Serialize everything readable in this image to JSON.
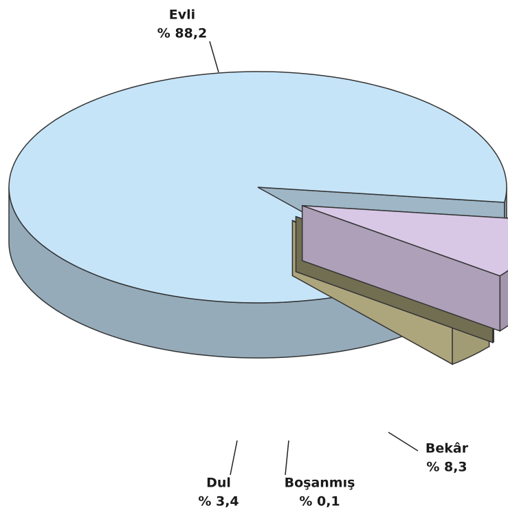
{
  "chart_data": {
    "type": "pie",
    "categories": [
      "Evli",
      "Bekâr",
      "Boşanmış",
      "Dul"
    ],
    "values": [
      88.2,
      8.3,
      0.1,
      3.4
    ],
    "value_labels": [
      "% 88,2",
      "% 8,3",
      "% 0,1",
      "% 3,4"
    ],
    "colors": [
      "#c6e4f8",
      "#d8c8e6",
      "#8f8a66",
      "#d8d09c"
    ]
  }
}
